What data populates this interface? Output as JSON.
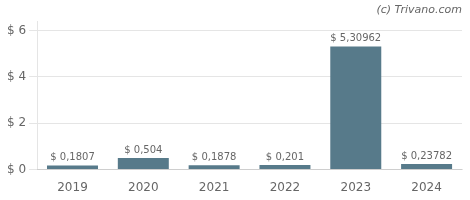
{
  "chart_data": {
    "type": "bar",
    "categories": [
      "2019",
      "2020",
      "2021",
      "2022",
      "2023",
      "2024"
    ],
    "values": [
      0.1807,
      0.504,
      0.1878,
      0.201,
      5.30962,
      0.23782
    ],
    "value_labels": [
      "$ 0,1807",
      "$ 0,504",
      "$ 0,1878",
      "$ 0,201",
      "$ 5,30962",
      "$ 0,23782"
    ],
    "data_labels": true,
    "color": "#577a8a",
    "ylim": [
      0,
      6.4
    ],
    "yticks": [
      {
        "value": 0,
        "label": "$ 0"
      },
      {
        "value": 2,
        "label": "$ 2"
      },
      {
        "value": 4,
        "label": "$ 4"
      },
      {
        "value": 6,
        "label": "$ 6"
      }
    ],
    "grid": true,
    "annotations": [
      "(c) Trivano.com"
    ]
  }
}
